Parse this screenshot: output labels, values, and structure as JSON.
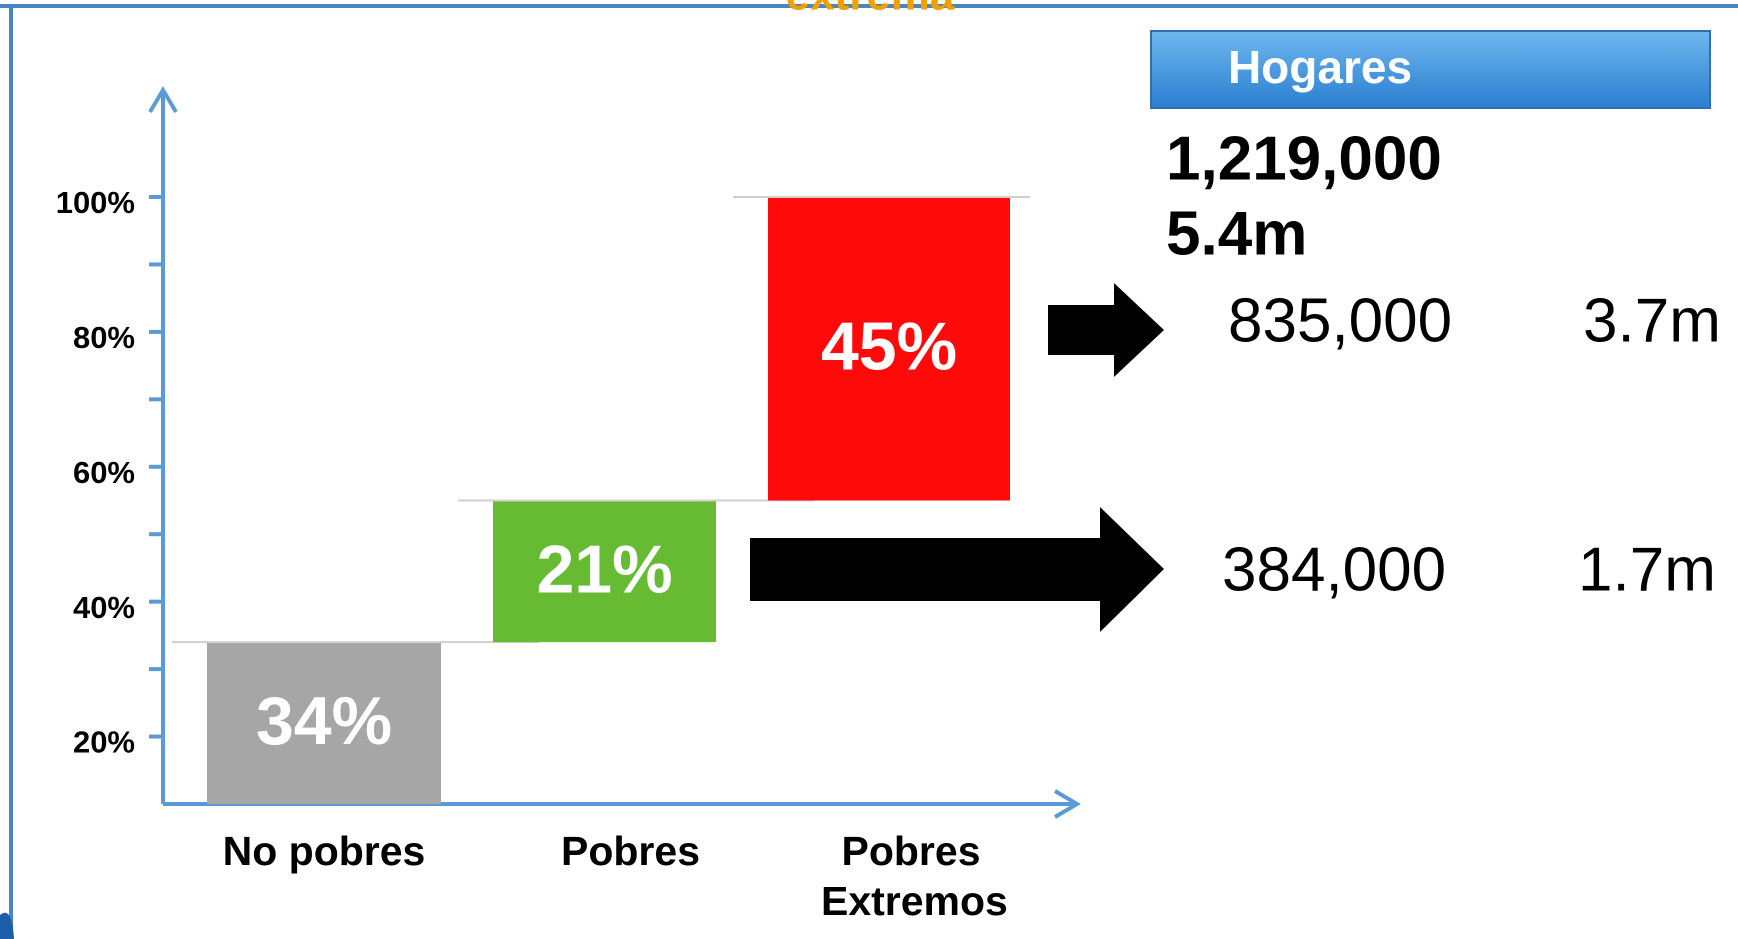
{
  "chart_data": {
    "type": "waterfall",
    "title": "extrema",
    "categories": [
      "No pobres",
      "Pobres",
      "Pobres Extremos"
    ],
    "values": [
      34,
      21,
      45
    ],
    "value_labels": [
      "34%",
      "21%",
      "45%"
    ],
    "colors": [
      "#a6a6a6",
      "#66bb33",
      "#ff0a0a"
    ],
    "ylim": [
      10,
      100
    ],
    "yticks": [
      {
        "value": 20,
        "label": "20%"
      },
      {
        "value": 40,
        "label": "40%"
      },
      {
        "value": 60,
        "label": "60%"
      },
      {
        "value": 80,
        "label": "80%"
      },
      {
        "value": 100,
        "label": "100%"
      }
    ],
    "minor_yticks": [
      30,
      50,
      70,
      90
    ]
  },
  "households": {
    "header": "Hogares",
    "total": "1,219,000",
    "total_people": "5.4m",
    "rows": [
      {
        "households": "835,000",
        "people": "3.7m"
      },
      {
        "households": "384,000",
        "people": "1.7m"
      }
    ]
  }
}
